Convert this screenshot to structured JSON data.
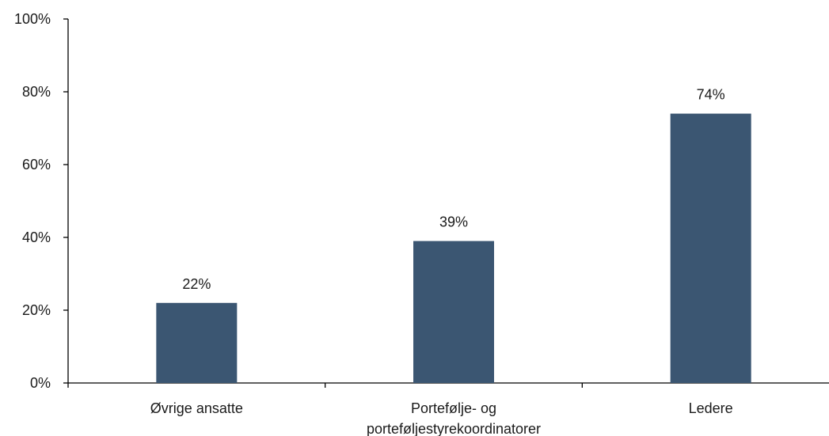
{
  "chart_data": {
    "type": "bar",
    "categories": [
      [
        "Øvrige ansatte"
      ],
      [
        "Portefølje- og",
        "porteføljestyrekoordinatorer"
      ],
      [
        "Ledere"
      ]
    ],
    "values": [
      22,
      39,
      74
    ],
    "data_labels": [
      "22%",
      "39%",
      "74%"
    ],
    "yticks": [
      {
        "value": 0,
        "label": "0%"
      },
      {
        "value": 20,
        "label": "20%"
      },
      {
        "value": 40,
        "label": "40%"
      },
      {
        "value": 60,
        "label": "60%"
      },
      {
        "value": 80,
        "label": "80%"
      },
      {
        "value": 100,
        "label": "100%"
      }
    ],
    "ylim": [
      0,
      100
    ],
    "grid": false,
    "legend": "none",
    "bar_color": "#3b5672",
    "axis_color": "#000000"
  }
}
